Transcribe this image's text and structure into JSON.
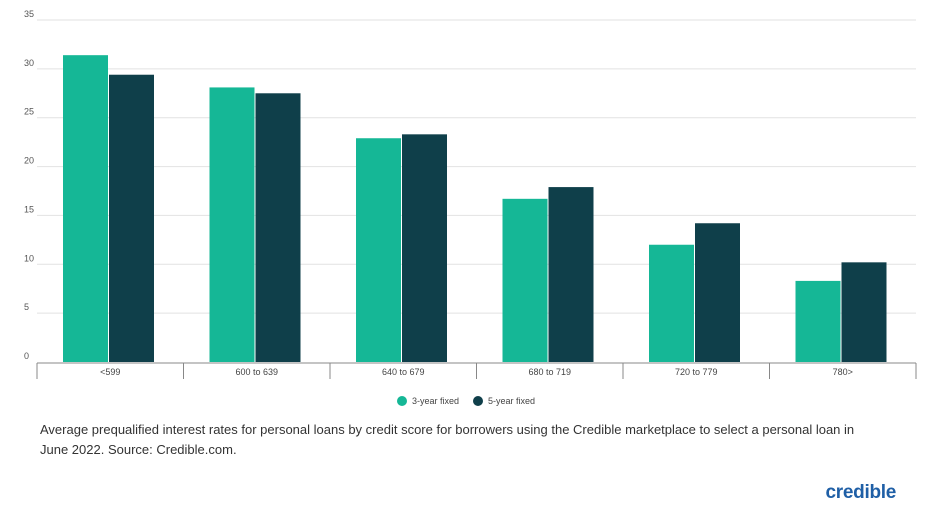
{
  "chart_data": {
    "type": "bar",
    "categories": [
      "<599",
      "600 to 639",
      "640 to 679",
      "680 to 719",
      "720 to 779",
      "780>"
    ],
    "series": [
      {
        "name": "3-year fixed",
        "color": "#15b796",
        "values": [
          31.4,
          28.1,
          22.9,
          16.7,
          12.0,
          8.3
        ]
      },
      {
        "name": "5-year fixed",
        "color": "#0f3f4a",
        "values": [
          29.4,
          27.5,
          23.3,
          17.9,
          14.2,
          10.2
        ]
      }
    ],
    "ylim": [
      0,
      35
    ],
    "yticks": [
      0,
      5,
      10,
      15,
      20,
      25,
      30,
      35
    ],
    "grid": true,
    "legend_position": "bottom-center"
  },
  "legend": {
    "series1_label": "3-year fixed",
    "series2_label": "5-year fixed",
    "series1_color": "#15b796",
    "series2_color": "#0f3f4a"
  },
  "caption": "Average prequalified interest rates for personal loans by credit score for borrowers using the Credible marketplace to select a personal loan in June 2022. Source: Credible.com.",
  "logo": "credible"
}
